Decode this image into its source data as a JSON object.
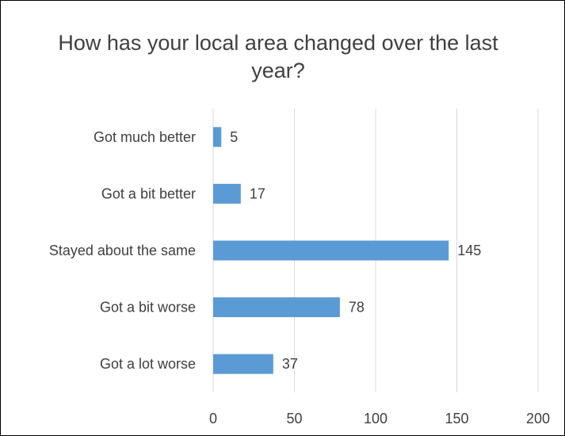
{
  "chart_data": {
    "type": "bar",
    "orientation": "horizontal",
    "title": "How has your local area changed over the last year?",
    "categories": [
      "Got much better",
      "Got a bit better",
      "Stayed about the same",
      "Got a bit worse",
      "Got a lot worse"
    ],
    "values": [
      5,
      17,
      145,
      78,
      37
    ],
    "xlim": [
      0,
      200
    ],
    "x_ticks": [
      "0",
      "50",
      "100",
      "150",
      "200"
    ],
    "grid": true,
    "legend": "none",
    "bar_color": "#5b9bd5",
    "grid_color": "#d9d9d9",
    "text_color": "#404040"
  }
}
